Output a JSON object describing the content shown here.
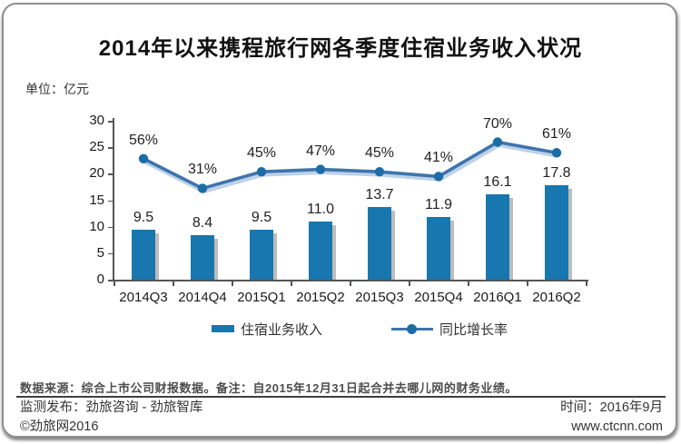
{
  "title": "2014年以来携程旅行网各季度住宿业务收入状况",
  "unit_label": "单位：亿元",
  "chart_data": {
    "type": "bar",
    "subtype": "bar+line combo",
    "categories": [
      "2014Q3",
      "2014Q4",
      "2015Q1",
      "2015Q2",
      "2015Q3",
      "2015Q4",
      "2016Q1",
      "2016Q2"
    ],
    "series": [
      {
        "name": "住宿业务收入",
        "type": "bar",
        "values": [
          9.5,
          8.4,
          9.5,
          11.0,
          13.7,
          11.9,
          16.1,
          17.8
        ],
        "color": "#1877AE"
      },
      {
        "name": "同比增长率",
        "type": "line",
        "unit": "%",
        "values": [
          56,
          31,
          45,
          47,
          45,
          41,
          70,
          61
        ],
        "color": "#3E74AD"
      }
    ],
    "title": "2014年以来携程旅行网各季度住宿业务收入状况",
    "ylabel": "单位：亿元",
    "xlabel": "",
    "ylim": [
      0,
      30
    ],
    "yticks": [
      0,
      5,
      10,
      15,
      20,
      25,
      30
    ],
    "y2lim": [
      -46,
      88
    ],
    "grid": false,
    "legend_position": "bottom"
  },
  "colors": {
    "bar": "#1877AE",
    "bar_shadow": "#BDBDBD",
    "line": "#3E74AD",
    "line_shadow": "#B7CCE4",
    "marker": "#1C6CA6",
    "title_text": "#111111"
  },
  "footer": {
    "note": "数据来源：综合上市公司财报数据。备注：自2015年12月31日起合并去哪儿网的财务业绩。",
    "publisher": "监测发布：劲旅咨询 - 劲旅智库",
    "time": "时间：2016年9月",
    "copyright": "©劲旅网2016",
    "website": "www.ctcnn.com"
  }
}
